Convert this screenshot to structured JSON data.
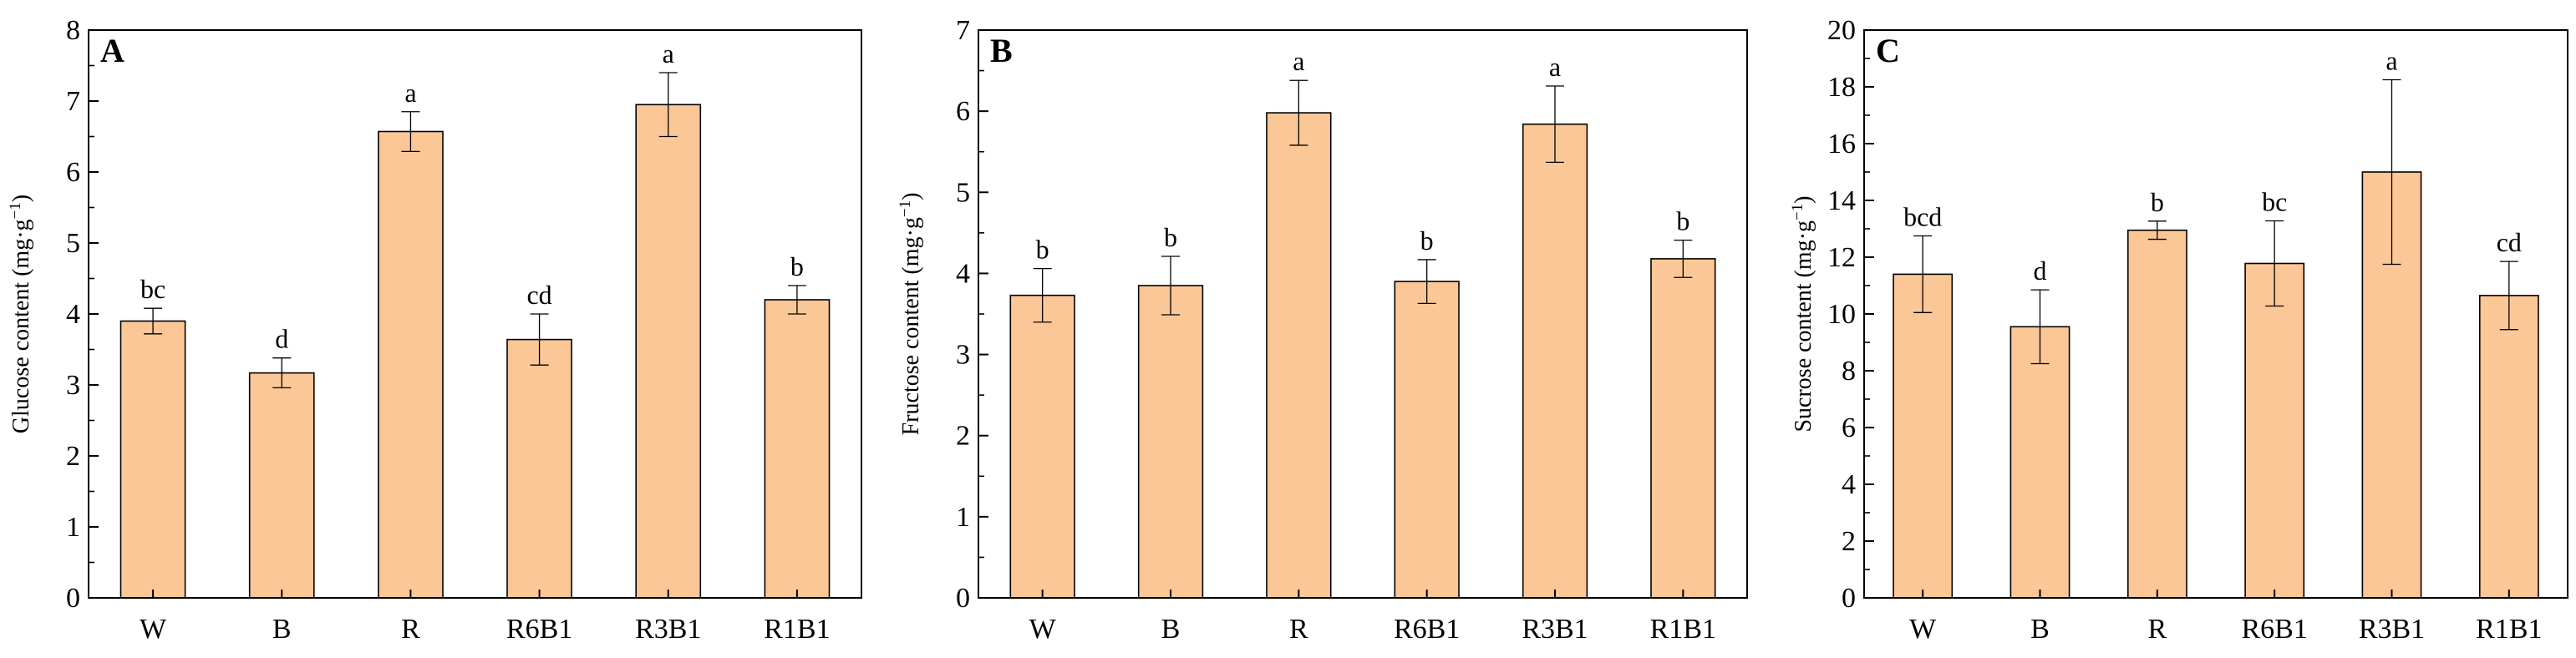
{
  "chart_data": [
    {
      "type": "bar",
      "panel_label": "A",
      "categories": [
        "W",
        "B",
        "R",
        "R6B1",
        "R3B1",
        "R1B1"
      ],
      "values": [
        3.9,
        3.17,
        6.57,
        3.64,
        6.95,
        4.2
      ],
      "errors": [
        0.18,
        0.21,
        0.28,
        0.36,
        0.45,
        0.2
      ],
      "significance": [
        "bc",
        "d",
        "a",
        "cd",
        "a",
        "b"
      ],
      "ylabel_main": "Glucose content (mg·g",
      "ylabel_sup": "−1",
      "ylabel_end": ")",
      "xlabel": "",
      "ylim": [
        0,
        8
      ],
      "yticks": [
        "0",
        "1",
        "2",
        "3",
        "4",
        "5",
        "6",
        "7",
        "8"
      ],
      "bar_color": "#fbc797",
      "grid": false
    },
    {
      "type": "bar",
      "panel_label": "B",
      "categories": [
        "W",
        "B",
        "R",
        "R6B1",
        "R3B1",
        "R1B1"
      ],
      "values": [
        3.73,
        3.85,
        5.98,
        3.9,
        5.84,
        4.18
      ],
      "errors": [
        0.33,
        0.36,
        0.4,
        0.27,
        0.47,
        0.23
      ],
      "significance": [
        "b",
        "b",
        "a",
        "b",
        "a",
        "b"
      ],
      "ylabel_main": "Fructose content (mg·g",
      "ylabel_sup": "−1",
      "ylabel_end": ")",
      "xlabel": "",
      "ylim": [
        0,
        7
      ],
      "yticks": [
        "0",
        "1",
        "2",
        "3",
        "4",
        "5",
        "6",
        "7"
      ],
      "bar_color": "#fbc797",
      "grid": false
    },
    {
      "type": "bar",
      "panel_label": "C",
      "categories": [
        "W",
        "B",
        "R",
        "R6B1",
        "R3B1",
        "R1B1"
      ],
      "values": [
        11.4,
        9.55,
        12.95,
        11.78,
        15.0,
        10.65
      ],
      "errors": [
        1.35,
        1.3,
        0.32,
        1.5,
        3.25,
        1.2
      ],
      "significance": [
        "bcd",
        "d",
        "b",
        "bc",
        "a",
        "cd"
      ],
      "ylabel_main": "Sucrose content (mg·g",
      "ylabel_sup": "−1",
      "ylabel_end": ")",
      "xlabel": "",
      "ylim": [
        0,
        20
      ],
      "yticks": [
        "0",
        "2",
        "4",
        "6",
        "8",
        "10",
        "12",
        "14",
        "16",
        "18",
        "20"
      ],
      "bar_color": "#fbc797",
      "grid": false
    }
  ]
}
